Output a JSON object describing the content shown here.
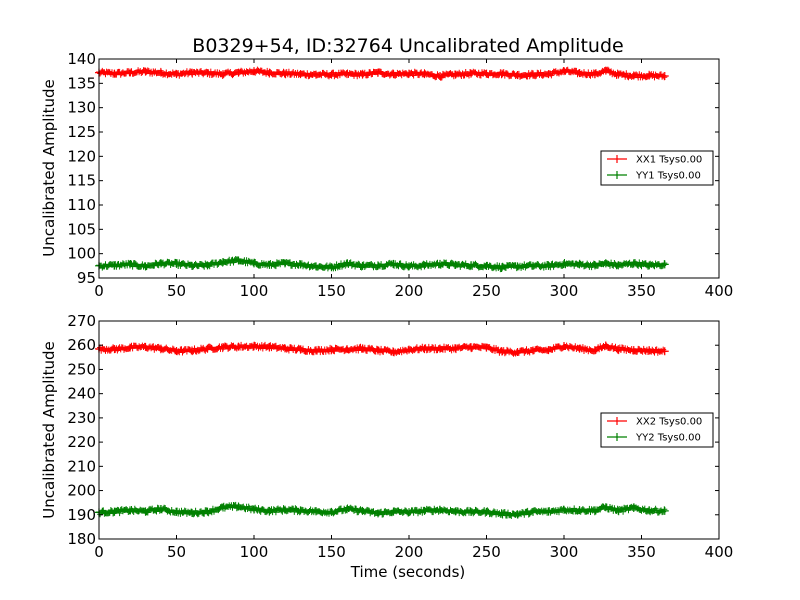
{
  "chart_data": [
    {
      "type": "line",
      "title": "B0329+54, ID:32764 Uncalibrated Amplitude",
      "xlabel": "",
      "ylabel": "Uncalibrated Amplitude",
      "xlim": [
        0,
        400
      ],
      "ylim": [
        95,
        140
      ],
      "xticks": [
        0,
        50,
        100,
        150,
        200,
        250,
        300,
        350,
        400
      ],
      "yticks": [
        95,
        100,
        105,
        110,
        115,
        120,
        125,
        130,
        135,
        140
      ],
      "legend_position": "center-right",
      "series": [
        {
          "name": "XX1 Tsys0.00",
          "color": "#ff0000",
          "x": [
            0,
            10,
            20,
            30,
            40,
            50,
            60,
            70,
            80,
            90,
            100,
            110,
            120,
            130,
            140,
            150,
            160,
            170,
            180,
            190,
            200,
            210,
            220,
            230,
            240,
            250,
            260,
            270,
            280,
            290,
            300,
            310,
            320,
            327,
            335,
            345,
            355,
            365
          ],
          "y": [
            137.2,
            137.0,
            137.2,
            137.4,
            137.2,
            136.9,
            137.2,
            137.1,
            136.9,
            137.2,
            137.5,
            137.2,
            137.0,
            136.9,
            136.8,
            136.8,
            136.9,
            136.8,
            137.2,
            136.9,
            137.0,
            136.9,
            136.5,
            136.8,
            137.0,
            137.0,
            137.0,
            136.7,
            136.8,
            136.9,
            137.5,
            137.1,
            136.9,
            137.6,
            136.8,
            136.6,
            136.6,
            136.5
          ]
        },
        {
          "name": "YY1 Tsys0.00",
          "color": "#008000",
          "x": [
            0,
            10,
            20,
            30,
            40,
            50,
            60,
            70,
            80,
            90,
            100,
            110,
            120,
            130,
            140,
            150,
            160,
            170,
            180,
            190,
            200,
            210,
            220,
            230,
            240,
            250,
            260,
            270,
            280,
            290,
            300,
            310,
            320,
            327,
            335,
            345,
            355,
            365
          ],
          "y": [
            97.5,
            97.6,
            97.8,
            97.4,
            98.0,
            97.9,
            97.5,
            97.6,
            98.3,
            98.6,
            98.0,
            97.7,
            98.0,
            97.8,
            97.4,
            97.2,
            98.0,
            97.5,
            97.6,
            97.9,
            97.4,
            97.6,
            97.9,
            97.7,
            97.6,
            97.5,
            97.2,
            97.4,
            97.5,
            97.5,
            97.9,
            97.8,
            97.6,
            98.0,
            97.6,
            98.0,
            97.6,
            97.8
          ]
        }
      ]
    },
    {
      "type": "line",
      "title": "",
      "xlabel": "Time (seconds)",
      "ylabel": "Uncalibrated Amplitude",
      "xlim": [
        0,
        400
      ],
      "ylim": [
        180,
        270
      ],
      "xticks": [
        0,
        50,
        100,
        150,
        200,
        250,
        300,
        350,
        400
      ],
      "yticks": [
        180,
        190,
        200,
        210,
        220,
        230,
        240,
        250,
        260,
        270
      ],
      "legend_position": "center-right",
      "series": [
        {
          "name": "XX2 Tsys0.00",
          "color": "#ff0000",
          "x": [
            0,
            10,
            20,
            30,
            40,
            50,
            60,
            70,
            80,
            90,
            100,
            110,
            120,
            130,
            140,
            150,
            160,
            170,
            180,
            190,
            200,
            210,
            220,
            230,
            240,
            250,
            260,
            270,
            280,
            290,
            300,
            310,
            320,
            327,
            335,
            345,
            355,
            365
          ],
          "y": [
            258.5,
            258.4,
            259.0,
            259.3,
            258.6,
            257.6,
            257.8,
            258.6,
            259.2,
            259.4,
            259.6,
            259.3,
            258.7,
            258.2,
            257.8,
            258.2,
            258.4,
            258.6,
            257.8,
            257.2,
            258.2,
            258.6,
            258.6,
            258.7,
            259.2,
            259.0,
            257.4,
            257.2,
            257.8,
            258.0,
            259.7,
            258.6,
            257.9,
            259.8,
            258.4,
            258.0,
            257.8,
            257.5
          ]
        },
        {
          "name": "YY2 Tsys0.00",
          "color": "#008000",
          "x": [
            0,
            10,
            20,
            30,
            40,
            50,
            60,
            70,
            80,
            90,
            100,
            110,
            120,
            130,
            140,
            150,
            160,
            170,
            180,
            190,
            200,
            210,
            220,
            230,
            240,
            250,
            260,
            270,
            280,
            290,
            300,
            310,
            320,
            327,
            335,
            345,
            355,
            365
          ],
          "y": [
            191.0,
            191.3,
            191.8,
            191.4,
            192.4,
            191.2,
            190.8,
            191.3,
            193.0,
            193.4,
            192.2,
            191.6,
            192.1,
            191.8,
            191.4,
            191.2,
            192.3,
            191.6,
            190.6,
            191.3,
            191.1,
            191.6,
            192.1,
            191.4,
            191.2,
            191.2,
            190.4,
            190.2,
            191.2,
            191.3,
            192.1,
            191.9,
            191.8,
            193.1,
            191.7,
            192.8,
            191.8,
            191.6
          ]
        }
      ]
    }
  ]
}
